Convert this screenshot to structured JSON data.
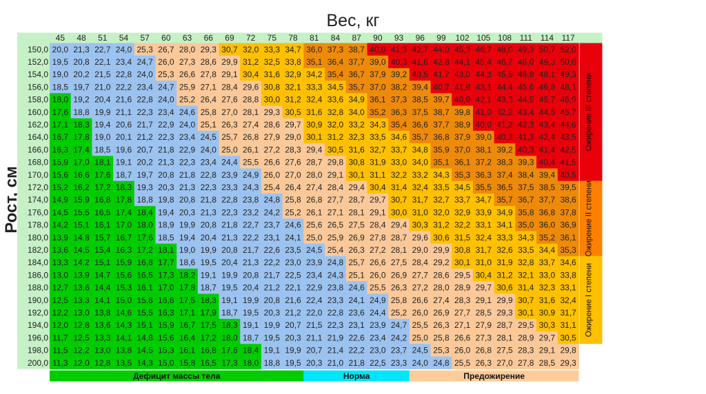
{
  "chart_data": {
    "type": "heatmap",
    "title": "Вес, кг",
    "xlabel": "Вес, кг",
    "ylabel": "Рост, см",
    "x": [
      45,
      48,
      51,
      54,
      57,
      60,
      63,
      66,
      69,
      72,
      75,
      78,
      81,
      84,
      87,
      90,
      93,
      96,
      99,
      102,
      105,
      108,
      111,
      114,
      117
    ],
    "y": [
      "150,0",
      "152,0",
      "154,0",
      "156,0",
      "158,0",
      "160,0",
      "162,0",
      "164,0",
      "166,0",
      "168,0",
      "170,0",
      "172,0",
      "174,0",
      "176,0",
      "178,0",
      "180,0",
      "182,0",
      "184,0",
      "186,0",
      "188,0",
      "190,0",
      "192,0",
      "194,0",
      "196,0",
      "198,0",
      "200,0"
    ],
    "values": [
      [
        "20,0",
        "21,3",
        "22,7",
        "24,0",
        "25,3",
        "26,7",
        "28,0",
        "29,3",
        "30,7",
        "32,0",
        "33,3",
        "34,7",
        "36,0",
        "37,3",
        "38,7",
        "40,0",
        "41,3",
        "42,7",
        "44,0",
        "45,3",
        "46,7",
        "48,0",
        "49,3",
        "50,7",
        "52,0"
      ],
      [
        "19,5",
        "20,8",
        "22,1",
        "23,4",
        "24,7",
        "26,0",
        "27,3",
        "28,6",
        "29,9",
        "31,2",
        "32,5",
        "33,8",
        "35,1",
        "36,4",
        "37,7",
        "39,0",
        "40,3",
        "41,6",
        "42,8",
        "44,1",
        "45,4",
        "46,7",
        "48,0",
        "49,3",
        "50,6"
      ],
      [
        "19,0",
        "20,2",
        "21,5",
        "22,8",
        "24,0",
        "25,3",
        "26,6",
        "27,8",
        "29,1",
        "30,4",
        "31,6",
        "32,9",
        "34,2",
        "35,4",
        "36,7",
        "37,9",
        "39,2",
        "40,5",
        "41,7",
        "43,0",
        "44,3",
        "45,5",
        "46,8",
        "48,1",
        "49,3"
      ],
      [
        "18,5",
        "19,7",
        "21,0",
        "22,2",
        "23,4",
        "24,7",
        "25,9",
        "27,1",
        "28,4",
        "29,6",
        "30,8",
        "32,1",
        "33,3",
        "34,5",
        "35,7",
        "37,0",
        "38,2",
        "39,4",
        "40,7",
        "41,9",
        "43,1",
        "44,4",
        "45,6",
        "46,8",
        "48,1"
      ],
      [
        "18,0",
        "19,2",
        "20,4",
        "21,6",
        "22,8",
        "24,0",
        "25,2",
        "26,4",
        "27,6",
        "28,8",
        "30,0",
        "31,2",
        "32,4",
        "33,6",
        "34,9",
        "36,1",
        "37,3",
        "38,5",
        "39,7",
        "40,9",
        "42,1",
        "43,3",
        "44,5",
        "45,7",
        "46,9"
      ],
      [
        "17,6",
        "18,8",
        "19,9",
        "21,1",
        "22,3",
        "23,4",
        "24,6",
        "25,8",
        "27,0",
        "28,1",
        "29,3",
        "30,5",
        "31,6",
        "32,8",
        "34,0",
        "35,2",
        "36,3",
        "37,5",
        "38,7",
        "39,8",
        "41,0",
        "42,2",
        "43,4",
        "44,5",
        "45,7"
      ],
      [
        "17,1",
        "18,3",
        "19,4",
        "20,6",
        "21,7",
        "22,9",
        "24,0",
        "25,1",
        "26,3",
        "27,4",
        "28,6",
        "29,7",
        "30,9",
        "32,0",
        "33,2",
        "34,3",
        "35,4",
        "36,6",
        "37,7",
        "38,9",
        "40,0",
        "41,2",
        "42,3",
        "43,4",
        "44,6"
      ],
      [
        "16,7",
        "17,8",
        "19,0",
        "20,1",
        "21,2",
        "22,3",
        "23,4",
        "24,5",
        "25,7",
        "26,8",
        "27,9",
        "29,0",
        "30,1",
        "31,2",
        "32,3",
        "33,5",
        "34,6",
        "35,7",
        "36,8",
        "37,9",
        "39,0",
        "40,2",
        "41,3",
        "42,4",
        "43,5"
      ],
      [
        "16,3",
        "17,4",
        "18,5",
        "19,6",
        "20,7",
        "21,8",
        "22,9",
        "24,0",
        "25,0",
        "26,1",
        "27,2",
        "28,3",
        "29,4",
        "30,5",
        "31,6",
        "32,7",
        "33,7",
        "34,8",
        "35,9",
        "37,0",
        "38,1",
        "39,2",
        "40,3",
        "41,4",
        "42,5"
      ],
      [
        "15,9",
        "17,0",
        "18,1",
        "19,1",
        "20,2",
        "21,3",
        "22,3",
        "23,4",
        "24,4",
        "25,5",
        "26,6",
        "27,6",
        "28,7",
        "29,8",
        "30,8",
        "31,9",
        "33,0",
        "34,0",
        "35,1",
        "36,1",
        "37,2",
        "38,3",
        "39,3",
        "40,4",
        "41,5"
      ],
      [
        "15,6",
        "16,6",
        "17,6",
        "18,7",
        "19,7",
        "20,8",
        "21,8",
        "22,8",
        "23,9",
        "24,9",
        "26,0",
        "27,0",
        "28,0",
        "29,1",
        "30,1",
        "31,1",
        "32,2",
        "33,2",
        "34,3",
        "35,3",
        "36,3",
        "37,4",
        "38,4",
        "39,4",
        "40,5"
      ],
      [
        "15,2",
        "16,2",
        "17,2",
        "18,3",
        "19,3",
        "20,3",
        "21,3",
        "22,3",
        "23,3",
        "24,3",
        "25,4",
        "26,4",
        "27,4",
        "28,4",
        "29,4",
        "30,4",
        "31,4",
        "32,4",
        "33,5",
        "34,5",
        "35,5",
        "36,5",
        "37,5",
        "38,5",
        "39,5"
      ],
      [
        "14,9",
        "15,9",
        "16,8",
        "17,8",
        "18,8",
        "19,8",
        "20,8",
        "21,8",
        "22,8",
        "23,8",
        "24,8",
        "25,8",
        "26,8",
        "27,7",
        "28,7",
        "29,7",
        "30,7",
        "31,7",
        "32,7",
        "33,7",
        "34,7",
        "35,7",
        "36,7",
        "37,7",
        "38,6"
      ],
      [
        "14,5",
        "15,5",
        "16,5",
        "17,4",
        "18,4",
        "19,4",
        "20,3",
        "21,3",
        "22,3",
        "23,2",
        "24,2",
        "25,2",
        "26,1",
        "27,1",
        "28,1",
        "29,1",
        "30,0",
        "31,0",
        "32,0",
        "32,9",
        "33,9",
        "34,9",
        "35,8",
        "36,8",
        "37,8"
      ],
      [
        "14,2",
        "15,1",
        "16,1",
        "17,0",
        "18,0",
        "18,9",
        "19,9",
        "20,8",
        "21,8",
        "22,7",
        "23,7",
        "24,6",
        "25,6",
        "26,5",
        "27,5",
        "28,4",
        "29,4",
        "30,3",
        "31,2",
        "32,2",
        "33,1",
        "34,1",
        "35,0",
        "36,0",
        "36,9"
      ],
      [
        "13,9",
        "14,8",
        "15,7",
        "16,7",
        "17,6",
        "18,5",
        "19,4",
        "20,4",
        "21,3",
        "22,2",
        "23,1",
        "24,1",
        "25,0",
        "25,9",
        "26,9",
        "27,8",
        "28,7",
        "29,6",
        "30,6",
        "31,5",
        "32,4",
        "33,3",
        "34,3",
        "35,2",
        "36,1"
      ],
      [
        "13,6",
        "14,5",
        "15,4",
        "16,3",
        "17,2",
        "18,1",
        "19,0",
        "19,9",
        "20,8",
        "21,7",
        "22,6",
        "23,5",
        "24,5",
        "25,4",
        "26,3",
        "27,2",
        "28,1",
        "29,0",
        "29,9",
        "30,8",
        "31,7",
        "32,6",
        "33,5",
        "34,4",
        "35,3"
      ],
      [
        "13,3",
        "14,2",
        "15,1",
        "15,9",
        "16,8",
        "17,7",
        "18,6",
        "19,5",
        "20,4",
        "21,3",
        "22,2",
        "23,0",
        "23,9",
        "24,8",
        "25,7",
        "26,6",
        "27,5",
        "28,4",
        "29,2",
        "30,1",
        "31,0",
        "31,9",
        "32,8",
        "33,7",
        "34,6"
      ],
      [
        "13,0",
        "13,9",
        "14,7",
        "15,6",
        "16,5",
        "17,3",
        "18,2",
        "19,1",
        "19,9",
        "20,8",
        "21,7",
        "22,5",
        "23,4",
        "24,3",
        "25,1",
        "26,0",
        "26,9",
        "27,7",
        "28,6",
        "29,5",
        "30,4",
        "31,2",
        "32,1",
        "33,0",
        "33,8"
      ],
      [
        "12,7",
        "13,6",
        "14,4",
        "15,3",
        "16,1",
        "17,0",
        "17,8",
        "18,7",
        "19,5",
        "20,4",
        "21,2",
        "22,1",
        "22,9",
        "23,8",
        "24,6",
        "25,5",
        "26,3",
        "27,2",
        "28,0",
        "28,9",
        "29,7",
        "30,6",
        "31,4",
        "32,3",
        "33,1"
      ],
      [
        "12,5",
        "13,3",
        "14,1",
        "15,0",
        "15,8",
        "16,6",
        "17,5",
        "18,3",
        "19,1",
        "19,9",
        "20,8",
        "21,6",
        "22,4",
        "23,3",
        "24,1",
        "24,9",
        "25,8",
        "26,6",
        "27,4",
        "28,3",
        "29,1",
        "29,9",
        "30,7",
        "31,6",
        "32,4"
      ],
      [
        "12,2",
        "13,0",
        "13,8",
        "14,6",
        "15,5",
        "16,3",
        "17,1",
        "17,9",
        "18,7",
        "19,5",
        "20,3",
        "21,2",
        "22,0",
        "22,8",
        "23,6",
        "24,4",
        "25,2",
        "26,0",
        "26,9",
        "27,7",
        "28,5",
        "29,3",
        "30,1",
        "30,9",
        "31,7"
      ],
      [
        "12,0",
        "12,8",
        "13,6",
        "14,3",
        "15,1",
        "15,9",
        "16,7",
        "17,5",
        "18,3",
        "19,1",
        "19,9",
        "20,7",
        "21,5",
        "22,3",
        "23,1",
        "23,9",
        "24,7",
        "25,5",
        "26,3",
        "27,1",
        "27,9",
        "28,7",
        "29,5",
        "30,3",
        "31,1"
      ],
      [
        "11,7",
        "12,5",
        "13,3",
        "14,1",
        "14,8",
        "15,6",
        "16,4",
        "17,2",
        "18,0",
        "18,7",
        "19,5",
        "20,3",
        "21,1",
        "21,9",
        "22,6",
        "23,4",
        "24,2",
        "25,0",
        "25,8",
        "26,6",
        "27,3",
        "28,1",
        "28,9",
        "29,7",
        "30,5"
      ],
      [
        "11,5",
        "12,2",
        "13,0",
        "13,8",
        "14,5",
        "15,3",
        "16,1",
        "16,8",
        "17,6",
        "18,4",
        "19,1",
        "19,9",
        "20,7",
        "21,4",
        "22,2",
        "23,0",
        "23,7",
        "24,5",
        "25,3",
        "26,0",
        "26,8",
        "27,5",
        "28,3",
        "29,1",
        "29,8"
      ],
      [
        "11,3",
        "12,0",
        "12,8",
        "13,5",
        "14,3",
        "15,0",
        "15,8",
        "16,5",
        "17,3",
        "18,0",
        "18,8",
        "19,5",
        "20,3",
        "21,0",
        "21,8",
        "22,5",
        "23,3",
        "24,0",
        "24,8",
        "25,5",
        "26,3",
        "27,0",
        "27,8",
        "28,5",
        "29,3"
      ]
    ],
    "categories_bottom": [
      {
        "label": "Дефицит массы тела",
        "color": "#00cc00"
      },
      {
        "label": "Норма",
        "color": "#00e5ff"
      },
      {
        "label": "Предожирение",
        "color": "#ffcc99"
      }
    ],
    "categories_side": [
      {
        "label": "Ожирение III степени",
        "color": "#e8000a"
      },
      {
        "label": "Ожирение II степени",
        "color": "#ff8000"
      },
      {
        "label": "Ожирение I степени",
        "color": "#ffc000"
      }
    ],
    "cell_colors": {
      "underweight": "#00cc00",
      "normal": "#9cc3f0",
      "overweight": "#fbc999",
      "obese_1": "#ffc000",
      "obese_2": "#ee8a0a",
      "obese_3": "#e8000a"
    },
    "header_color": "#c6f0c6",
    "thresholds": [
      18.5,
      25,
      30,
      35,
      40
    ]
  }
}
